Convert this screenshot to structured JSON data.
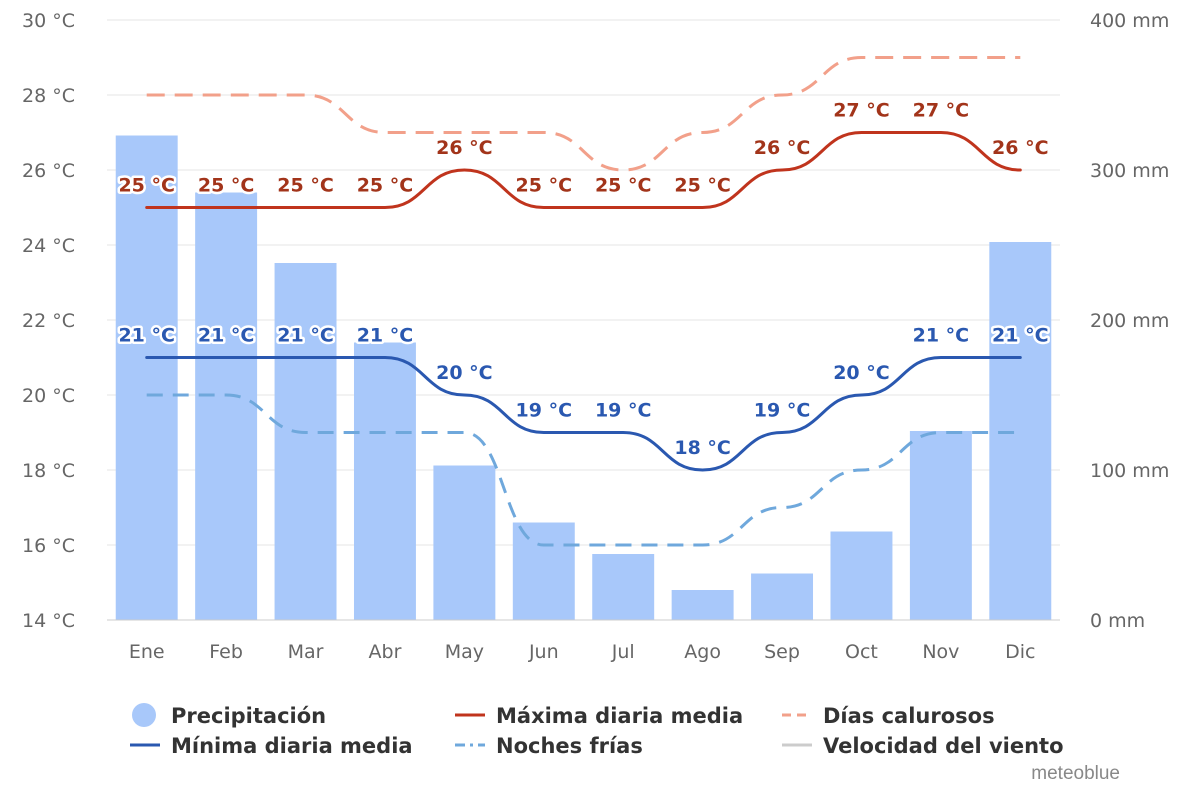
{
  "chart_data": {
    "type": "bar",
    "months": [
      "Ene",
      "Feb",
      "Mar",
      "Abr",
      "May",
      "Jun",
      "Jul",
      "Ago",
      "Sep",
      "Oct",
      "Nov",
      "Dic"
    ],
    "left_axis": {
      "ticks": [
        "14 °C",
        "16 °C",
        "18 °C",
        "20 °C",
        "22 °C",
        "24 °C",
        "26 °C",
        "28 °C",
        "30 °C"
      ],
      "range": [
        14,
        30
      ],
      "unit": "°C"
    },
    "right_axis": {
      "ticks": [
        "0 mm",
        "100 mm",
        "200 mm",
        "300 mm",
        "400 mm"
      ],
      "range": [
        0,
        400
      ],
      "unit": "mm"
    },
    "grid": true,
    "series": [
      {
        "name": "Precipitación",
        "kind": "bar",
        "axis": "right",
        "color": "#a8c8fa",
        "values": [
          323,
          285,
          238,
          185,
          103,
          65,
          44,
          20,
          31,
          59,
          126,
          252
        ]
      },
      {
        "name": "Máxima diaria media",
        "kind": "line",
        "axis": "left",
        "color": "#c0341d",
        "values": [
          25,
          25,
          25,
          25,
          26,
          25,
          25,
          25,
          26,
          27,
          27,
          26
        ],
        "labels": [
          "25 °C",
          "25 °C",
          "25 °C",
          "25 °C",
          "26 °C",
          "25 °C",
          "25 °C",
          "25 °C",
          "26 °C",
          "27 °C",
          "27 °C",
          "26 °C"
        ],
        "label_color": "#a2341a"
      },
      {
        "name": "Días calurosos",
        "kind": "dashed",
        "axis": "left",
        "color": "#f2a08a",
        "values": [
          28,
          28,
          28,
          27,
          27,
          27,
          26,
          27,
          28,
          29,
          29,
          29
        ]
      },
      {
        "name": "Mínima diaria media",
        "kind": "line",
        "axis": "left",
        "color": "#2a58b0",
        "values": [
          21,
          21,
          21,
          21,
          20,
          19,
          19,
          18,
          19,
          20,
          21,
          21
        ],
        "labels": [
          "21 °C",
          "21 °C",
          "21 °C",
          "21 °C",
          "20 °C",
          "19 °C",
          "19 °C",
          "18 °C",
          "19 °C",
          "20 °C",
          "21 °C",
          "21 °C"
        ],
        "label_color": "#2a58b0"
      },
      {
        "name": "Noches frías",
        "kind": "dashed",
        "axis": "left",
        "color": "#6fa8dc",
        "values": [
          20,
          20,
          19,
          19,
          19,
          16,
          16,
          16,
          17,
          18,
          19,
          19
        ]
      },
      {
        "name": "Velocidad del viento",
        "kind": "line",
        "axis": "none",
        "color": "#cccccc",
        "hidden": true,
        "values": []
      }
    ],
    "legend": [
      {
        "name": "Precipitación",
        "symbol": "circle",
        "color": "#a8c8fa",
        "hidden": false
      },
      {
        "name": "Máxima diaria media",
        "symbol": "line",
        "color": "#c0341d",
        "hidden": false
      },
      {
        "name": "Días calurosos",
        "symbol": "dash",
        "color": "#f2a08a",
        "hidden": false
      },
      {
        "name": "Mínima diaria media",
        "symbol": "line",
        "color": "#2a58b0",
        "hidden": false
      },
      {
        "name": "Noches frías",
        "symbol": "dashdot",
        "color": "#6fa8dc",
        "hidden": false
      },
      {
        "name": "Velocidad del viento",
        "symbol": "line",
        "color": "#cccccc",
        "hidden": true
      }
    ],
    "legend_position": "bottom",
    "credit": "meteoblue"
  }
}
